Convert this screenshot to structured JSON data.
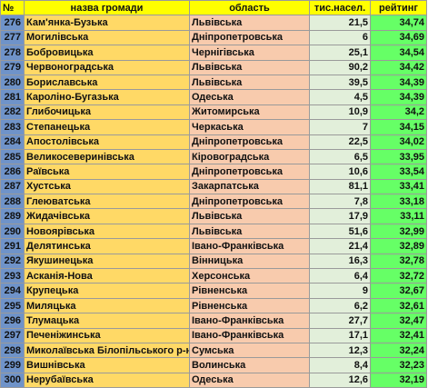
{
  "headers": {
    "num": "№",
    "name": "назва громади",
    "region": "область",
    "population": "тис.насел.",
    "rating": "рейтинг"
  },
  "rows": [
    {
      "num": "276",
      "name": "Кам'янка-Бузька",
      "region": "Львівська",
      "population": "21,5",
      "rating": "34,74"
    },
    {
      "num": "277",
      "name": "Могилівська",
      "region": "Дніпропетровська",
      "population": "6",
      "rating": "34,69"
    },
    {
      "num": "278",
      "name": "Бобровицька",
      "region": "Чернігівська",
      "population": "25,1",
      "rating": "34,54"
    },
    {
      "num": "279",
      "name": "Червоноградська",
      "region": "Львівська",
      "population": "90,2",
      "rating": "34,42"
    },
    {
      "num": "280",
      "name": "Бориславська",
      "region": "Львівська",
      "population": "39,5",
      "rating": "34,39"
    },
    {
      "num": "281",
      "name": "Кароліно-Бугазька",
      "region": "Одеська",
      "population": "4,5",
      "rating": "34,39"
    },
    {
      "num": "282",
      "name": "Глибочицька",
      "region": "Житомирська",
      "population": "10,9",
      "rating": "34,2"
    },
    {
      "num": "283",
      "name": "Степанецька",
      "region": "Черкаська",
      "population": "7",
      "rating": "34,15"
    },
    {
      "num": "284",
      "name": "Апостолівська",
      "region": "Дніпропетровська",
      "population": "22,5",
      "rating": "34,02"
    },
    {
      "num": "285",
      "name": "Великосеверинівська",
      "region": "Кіровоградська",
      "population": "6,5",
      "rating": "33,95"
    },
    {
      "num": "286",
      "name": "Раївська",
      "region": "Дніпропетровська",
      "population": "10,6",
      "rating": "33,54"
    },
    {
      "num": "287",
      "name": "Хустська",
      "region": "Закарпатська",
      "population": "81,1",
      "rating": "33,41"
    },
    {
      "num": "288",
      "name": "Глеюватська",
      "region": "Дніпропетровська",
      "population": "7,8",
      "rating": "33,18"
    },
    {
      "num": "289",
      "name": "Жидачівська",
      "region": "Львівська",
      "population": "17,9",
      "rating": "33,11"
    },
    {
      "num": "290",
      "name": "Новоярівська",
      "region": "Львівська",
      "population": "51,6",
      "rating": "32,99"
    },
    {
      "num": "291",
      "name": "Делятинська",
      "region": "Івано-Франківська",
      "population": "21,4",
      "rating": "32,89"
    },
    {
      "num": "292",
      "name": "Якушинецька",
      "region": "Вінницька",
      "population": "16,3",
      "rating": "32,78"
    },
    {
      "num": "293",
      "name": "Асканія-Нова",
      "region": "Херсонська",
      "population": "6,4",
      "rating": "32,72"
    },
    {
      "num": "294",
      "name": "Крупецька",
      "region": "Рівненська",
      "population": "9",
      "rating": "32,67"
    },
    {
      "num": "295",
      "name": "Миляцька",
      "region": "Рівненська",
      "population": "6,2",
      "rating": "32,61"
    },
    {
      "num": "296",
      "name": "Тлумацька",
      "region": "Івано-Франківська",
      "population": "27,7",
      "rating": "32,47"
    },
    {
      "num": "297",
      "name": "Печеніжинська",
      "region": "Івано-Франківська",
      "population": "17,1",
      "rating": "32,41"
    },
    {
      "num": "298",
      "name": "Миколаївська Білопільського р-ну",
      "region": "Сумська",
      "population": "12,3",
      "rating": "32,24"
    },
    {
      "num": "299",
      "name": "Вишнівська",
      "region": "Волинська",
      "population": "8,4",
      "rating": "32,23"
    },
    {
      "num": "300",
      "name": "Нерубаївська",
      "region": "Одеська",
      "population": "12,6",
      "rating": "32,19"
    }
  ]
}
